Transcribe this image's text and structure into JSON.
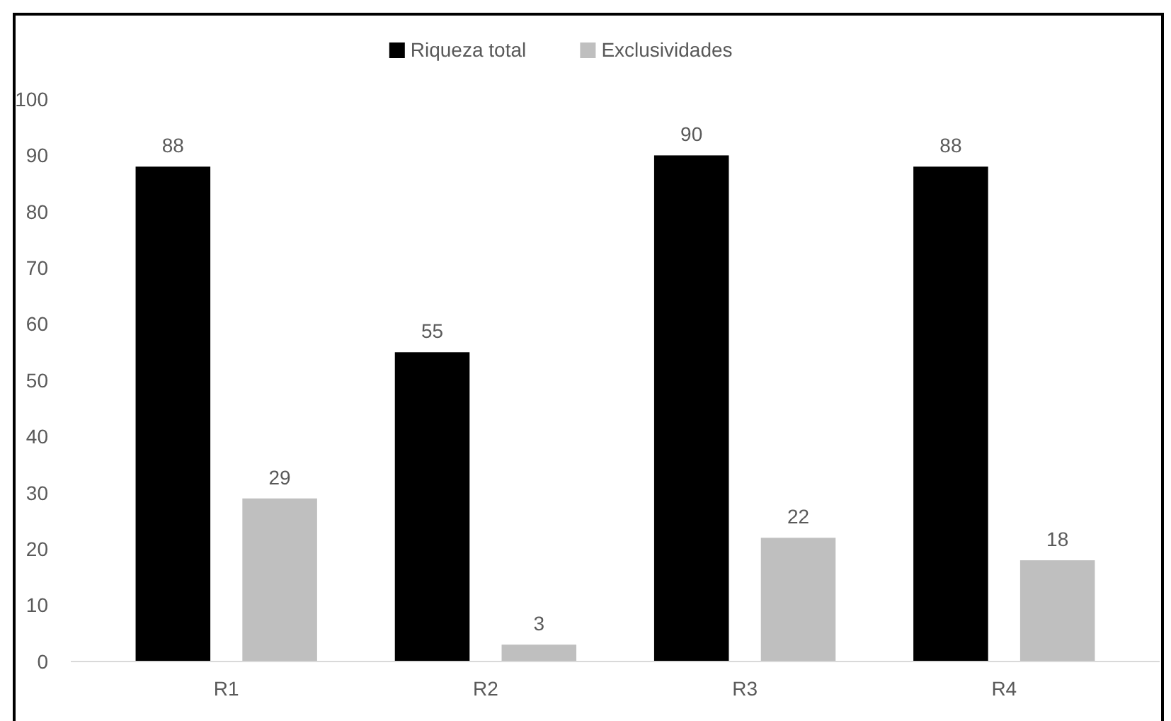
{
  "chart_data": {
    "type": "bar",
    "categories": [
      "R1",
      "R2",
      "R3",
      "R4"
    ],
    "series": [
      {
        "name": "Riqueza total",
        "color": "#000000",
        "values": [
          88,
          55,
          90,
          88
        ]
      },
      {
        "name": "Exclusividades",
        "color": "#bfbfbf",
        "values": [
          29,
          3,
          22,
          18
        ]
      }
    ],
    "ylim": [
      0,
      100
    ],
    "yticks": [
      0,
      10,
      20,
      30,
      40,
      50,
      60,
      70,
      80,
      90,
      100
    ],
    "grid": false,
    "legend": "top",
    "data_labels": true
  }
}
